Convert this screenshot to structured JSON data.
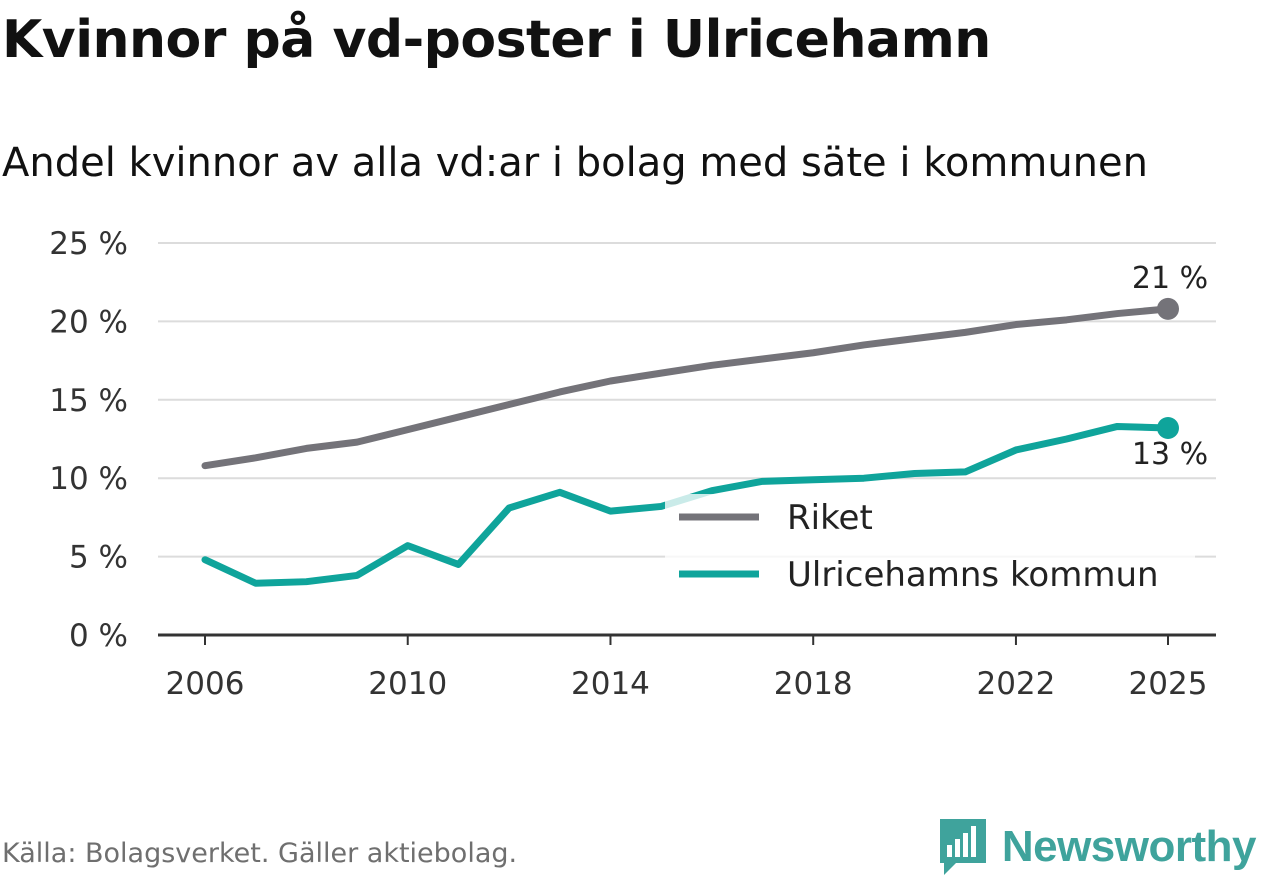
{
  "title": "Kvinnor på vd-poster i Ulricehamn",
  "subtitle": "Andel kvinnor av alla vd:ar i bolag med säte i kommunen",
  "source": "Källa: Bolagsverket. Gäller aktiebolag.",
  "brand": {
    "name": "Newsworthy",
    "icon": "newsworthy-logo-icon",
    "color": "#3fa39c"
  },
  "chart_data": {
    "type": "line",
    "x": [
      2006,
      2007,
      2008,
      2009,
      2010,
      2011,
      2012,
      2013,
      2014,
      2015,
      2016,
      2017,
      2018,
      2019,
      2020,
      2021,
      2022,
      2023,
      2024,
      2025
    ],
    "series": [
      {
        "name": "Riket",
        "color": "#747379",
        "values": [
          10.8,
          11.3,
          11.9,
          12.3,
          13.1,
          13.9,
          14.7,
          15.5,
          16.2,
          16.7,
          17.2,
          17.6,
          18.0,
          18.5,
          18.9,
          19.3,
          19.8,
          20.1,
          20.5,
          20.8
        ],
        "end_label": "21 %"
      },
      {
        "name": "Ulricehamns kommun",
        "color": "#0fa49b",
        "values": [
          4.8,
          3.3,
          3.4,
          3.8,
          5.7,
          4.5,
          8.1,
          9.1,
          7.9,
          8.2,
          9.2,
          9.8,
          9.9,
          10.0,
          10.3,
          10.4,
          11.8,
          12.5,
          13.3,
          13.2
        ],
        "end_label": "13 %"
      }
    ],
    "y_ticks": [
      0,
      5,
      10,
      15,
      20,
      25
    ],
    "y_tick_labels": [
      "0 %",
      "5 %",
      "10 %",
      "15 %",
      "20 %",
      "25 %"
    ],
    "x_ticks": [
      2006,
      2010,
      2014,
      2018,
      2022,
      2025
    ],
    "x_tick_labels": [
      "2006",
      "2010",
      "2014",
      "2018",
      "2022",
      "2025"
    ],
    "ylim": [
      0,
      25
    ],
    "xlim": [
      2006,
      2025
    ],
    "grid": true,
    "legend_position": "center-right"
  }
}
